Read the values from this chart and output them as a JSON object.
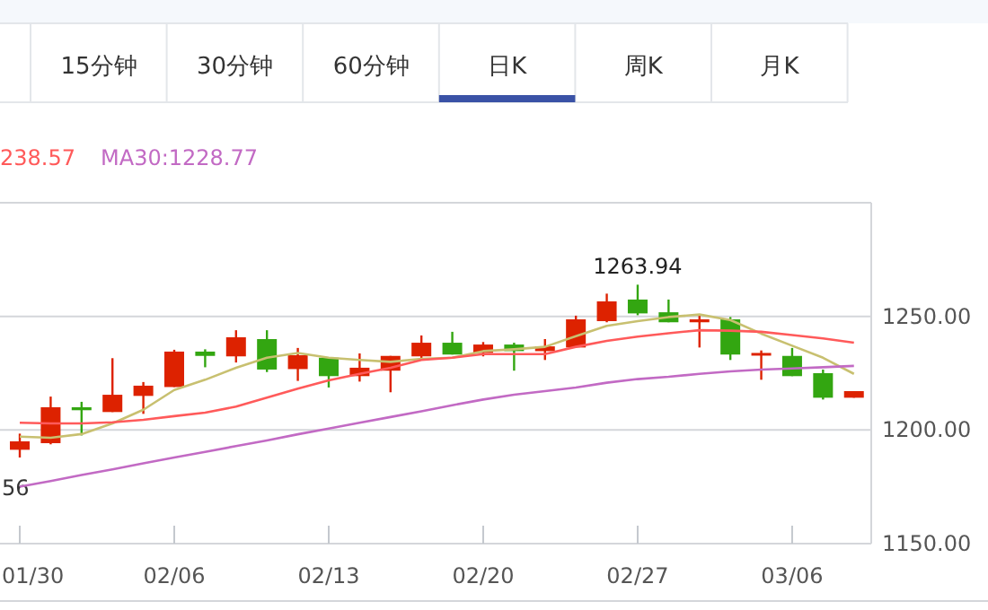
{
  "chart_data": {
    "type": "candlestick",
    "categories": [
      "01/30",
      null,
      null,
      null,
      null,
      "02/06",
      null,
      null,
      null,
      null,
      "02/13",
      null,
      null,
      null,
      null,
      "02/20",
      null,
      null,
      null,
      null,
      "02/27",
      null,
      null,
      null,
      null,
      "03/06",
      null,
      null
    ],
    "ohlc": [
      [
        1191.3,
        1198.4,
        1187.9,
        1195.0
      ],
      [
        1194.2,
        1214.7,
        1193.7,
        1210.0
      ],
      [
        1210.0,
        1212.4,
        1197.6,
        1208.7
      ],
      [
        1207.9,
        1231.6,
        1207.9,
        1215.5
      ],
      [
        1215.0,
        1221.1,
        1207.1,
        1219.5
      ],
      [
        1218.9,
        1235.3,
        1218.9,
        1234.5
      ],
      [
        1234.5,
        1235.5,
        1227.6,
        1232.6
      ],
      [
        1232.4,
        1243.9,
        1229.7,
        1240.8
      ],
      [
        1240.0,
        1243.9,
        1225.5,
        1226.6
      ],
      [
        1226.8,
        1236.1,
        1221.6,
        1232.9
      ],
      [
        1231.8,
        1231.8,
        1218.7,
        1223.7
      ],
      [
        1223.7,
        1233.7,
        1221.3,
        1227.4
      ],
      [
        1226.1,
        1232.6,
        1216.6,
        1232.6
      ],
      [
        1232.4,
        1241.6,
        1231.1,
        1238.4
      ],
      [
        1238.4,
        1243.2,
        1233.2,
        1233.2
      ],
      [
        1233.9,
        1238.7,
        1232.4,
        1237.6
      ],
      [
        1237.6,
        1238.4,
        1226.1,
        1234.7
      ],
      [
        1234.7,
        1240.0,
        1230.8,
        1236.8
      ],
      [
        1236.3,
        1250.3,
        1236.3,
        1248.7
      ],
      [
        1247.9,
        1260.0,
        1247.4,
        1256.6
      ],
      [
        1257.4,
        1263.94,
        1250.5,
        1251.3
      ],
      [
        1251.8,
        1257.4,
        1247.4,
        1247.4
      ],
      [
        1247.4,
        1250.8,
        1236.3,
        1248.7
      ],
      [
        1248.7,
        1249.7,
        1230.8,
        1233.2
      ],
      [
        1233.2,
        1235.0,
        1222.1,
        1233.9
      ],
      [
        1232.6,
        1236.1,
        1223.7,
        1223.7
      ],
      [
        1225.0,
        1226.6,
        1213.4,
        1214.2
      ],
      [
        1214.2,
        1217.1,
        1214.2,
        1217.1
      ]
    ],
    "series": [
      {
        "type": "line",
        "color": "#c8c070",
        "values": [
          1197.1,
          1196.6,
          1198.2,
          1202.9,
          1208.9,
          1217.6,
          1222.1,
          1227.4,
          1231.8,
          1233.9,
          1231.8,
          1230.8,
          1230.0,
          1231.3,
          1231.8,
          1234.7,
          1235.5,
          1236.6,
          1241.3,
          1245.8,
          1247.9,
          1249.7,
          1250.8,
          1248.4,
          1242.4,
          1237.1,
          1231.8,
          1224.7
        ]
      },
      {
        "type": "line",
        "name": "238.57",
        "color": "#ff5a5a",
        "values": [
          1203.2,
          1202.9,
          1202.9,
          1203.4,
          1204.5,
          1206.1,
          1207.6,
          1210.3,
          1214.2,
          1218.2,
          1221.8,
          1224.7,
          1227.4,
          1230.8,
          1231.8,
          1233.4,
          1233.4,
          1233.4,
          1236.6,
          1239.2,
          1241.1,
          1242.6,
          1243.9,
          1243.7,
          1243.2,
          1241.8,
          1240.3,
          1238.4
        ]
      },
      {
        "type": "line",
        "name": "MA30:1228.77",
        "color": "#c26ac4",
        "values": [
          1175.1,
          1177.5,
          1180.2,
          1182.7,
          1185.3,
          1187.9,
          1190.4,
          1192.9,
          1195.4,
          1198.1,
          1200.6,
          1203.2,
          1205.7,
          1208.2,
          1210.9,
          1213.4,
          1215.5,
          1217.1,
          1218.7,
          1220.8,
          1222.4,
          1223.4,
          1224.7,
          1225.8,
          1226.6,
          1227.1,
          1227.6,
          1228.2
        ]
      }
    ],
    "ylim": [
      1150,
      1300
    ],
    "yticks": [
      {
        "value": 1150,
        "label": "1150.00"
      },
      {
        "value": 1200,
        "label": "1200.00"
      },
      {
        "value": 1250,
        "label": "1250.00"
      }
    ],
    "grid": "y",
    "legend": "top left",
    "annotations": [
      "15分钟",
      "30分钟",
      "60分钟",
      "日K",
      "周K",
      "月K",
      "56",
      {
        "text": "1263.94",
        "x": "02/27",
        "y": 1263.94
      }
    ]
  }
}
